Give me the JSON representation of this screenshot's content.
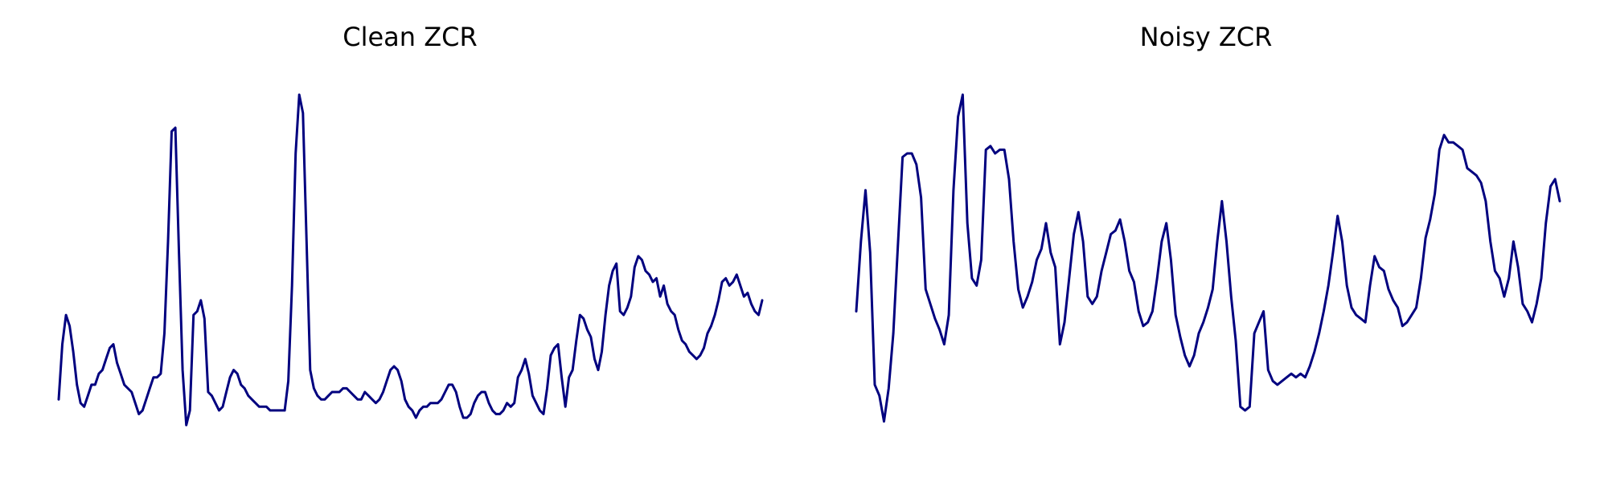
{
  "chart_data": [
    {
      "type": "line",
      "title": "Clean ZCR",
      "xlabel": "",
      "ylabel": "",
      "grid": false,
      "axes_visible": false,
      "color": "#00007f",
      "xlim": [
        0,
        131
      ],
      "ylim": [
        0,
        1
      ],
      "values": [
        0.12,
        0.27,
        0.35,
        0.32,
        0.25,
        0.16,
        0.11,
        0.1,
        0.13,
        0.16,
        0.16,
        0.19,
        0.2,
        0.23,
        0.26,
        0.27,
        0.22,
        0.19,
        0.16,
        0.15,
        0.14,
        0.11,
        0.08,
        0.09,
        0.12,
        0.15,
        0.18,
        0.18,
        0.19,
        0.3,
        0.55,
        0.85,
        0.86,
        0.52,
        0.2,
        0.05,
        0.09,
        0.35,
        0.36,
        0.39,
        0.34,
        0.14,
        0.13,
        0.11,
        0.09,
        0.1,
        0.14,
        0.18,
        0.2,
        0.19,
        0.16,
        0.15,
        0.13,
        0.12,
        0.11,
        0.1,
        0.1,
        0.1,
        0.09,
        0.09,
        0.09,
        0.09,
        0.09,
        0.17,
        0.43,
        0.79,
        0.95,
        0.9,
        0.55,
        0.2,
        0.15,
        0.13,
        0.12,
        0.12,
        0.13,
        0.14,
        0.14,
        0.14,
        0.15,
        0.15,
        0.14,
        0.13,
        0.12,
        0.12,
        0.14,
        0.13,
        0.12,
        0.11,
        0.12,
        0.14,
        0.17,
        0.2,
        0.21,
        0.2,
        0.17,
        0.12,
        0.1,
        0.09,
        0.07,
        0.09,
        0.1,
        0.1,
        0.11,
        0.11,
        0.11,
        0.12,
        0.14,
        0.16,
        0.16,
        0.14,
        0.1,
        0.07,
        0.07,
        0.08,
        0.11,
        0.13,
        0.14,
        0.14,
        0.11,
        0.09,
        0.08,
        0.08,
        0.09,
        0.11,
        0.1,
        0.11,
        0.18,
        0.2,
        0.23,
        0.19,
        0.13,
        0.11,
        0.09,
        0.08,
        0.15,
        0.24,
        0.26,
        0.27,
        0.18,
        0.1,
        0.18,
        0.2,
        0.28,
        0.35,
        0.34,
        0.31,
        0.29,
        0.23,
        0.2,
        0.25,
        0.35,
        0.43,
        0.47,
        0.49,
        0.36,
        0.35,
        0.37,
        0.4,
        0.48,
        0.51,
        0.5,
        0.47,
        0.46,
        0.44,
        0.45,
        0.4,
        0.43,
        0.38,
        0.36,
        0.35,
        0.31,
        0.28,
        0.27,
        0.25,
        0.24,
        0.23,
        0.24,
        0.26,
        0.3,
        0.32,
        0.35,
        0.39,
        0.44,
        0.45,
        0.43,
        0.44,
        0.46,
        0.43,
        0.4,
        0.41,
        0.38,
        0.36,
        0.35,
        0.39
      ]
    },
    {
      "type": "line",
      "title": "Noisy ZCR",
      "xlabel": "",
      "ylabel": "",
      "grid": false,
      "axes_visible": false,
      "color": "#00007f",
      "xlim": [
        0,
        131
      ],
      "ylim": [
        0,
        1
      ],
      "values": [
        0.36,
        0.55,
        0.69,
        0.52,
        0.16,
        0.13,
        0.06,
        0.15,
        0.3,
        0.54,
        0.78,
        0.79,
        0.79,
        0.76,
        0.67,
        0.42,
        0.38,
        0.34,
        0.31,
        0.27,
        0.35,
        0.69,
        0.89,
        0.95,
        0.6,
        0.45,
        0.43,
        0.5,
        0.8,
        0.81,
        0.79,
        0.8,
        0.8,
        0.72,
        0.55,
        0.42,
        0.37,
        0.4,
        0.44,
        0.5,
        0.53,
        0.6,
        0.52,
        0.48,
        0.27,
        0.33,
        0.45,
        0.57,
        0.63,
        0.55,
        0.4,
        0.38,
        0.4,
        0.47,
        0.52,
        0.57,
        0.58,
        0.61,
        0.55,
        0.47,
        0.44,
        0.36,
        0.32,
        0.33,
        0.36,
        0.45,
        0.55,
        0.6,
        0.5,
        0.35,
        0.29,
        0.24,
        0.21,
        0.24,
        0.3,
        0.33,
        0.37,
        0.42,
        0.55,
        0.66,
        0.55,
        0.4,
        0.28,
        0.1,
        0.09,
        0.1,
        0.3,
        0.33,
        0.36,
        0.2,
        0.17,
        0.16,
        0.17,
        0.18,
        0.19,
        0.18,
        0.19,
        0.18,
        0.21,
        0.25,
        0.3,
        0.36,
        0.43,
        0.52,
        0.62,
        0.55,
        0.43,
        0.37,
        0.35,
        0.34,
        0.33,
        0.43,
        0.51,
        0.48,
        0.47,
        0.42,
        0.39,
        0.37,
        0.32,
        0.33,
        0.35,
        0.37,
        0.45,
        0.56,
        0.61,
        0.68,
        0.8,
        0.84,
        0.82,
        0.82,
        0.81,
        0.8,
        0.75,
        0.74,
        0.73,
        0.71,
        0.66,
        0.55,
        0.47,
        0.45,
        0.4,
        0.45,
        0.55,
        0.48,
        0.38,
        0.36,
        0.33,
        0.38,
        0.45,
        0.6,
        0.7,
        0.72,
        0.66
      ]
    }
  ]
}
